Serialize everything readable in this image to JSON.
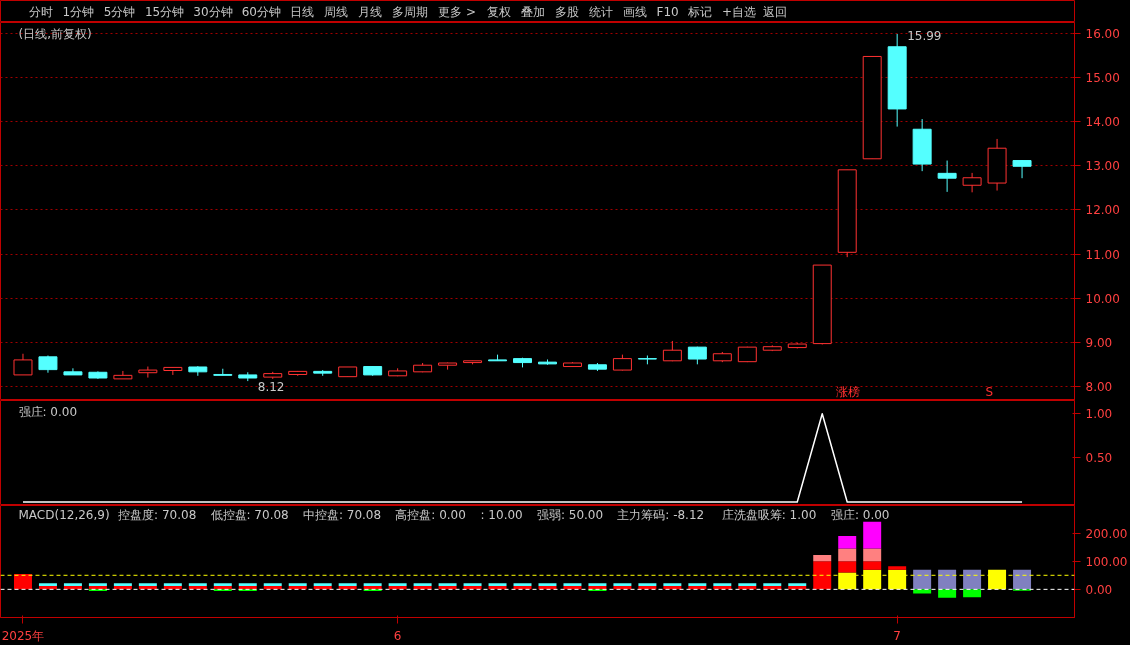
{
  "chart_data": [
    {
      "type": "other",
      "annotations": [
        "分时",
        "1分钟",
        "5分钟",
        "15分钟",
        "30分钟",
        "60分钟",
        "日线",
        "周线",
        "月线",
        "多周期",
        "更多 >",
        "复权",
        "叠加",
        "多股",
        "统计",
        "画线",
        "F10",
        "标记",
        "+自选",
        "返回"
      ]
    },
    {
      "type": "candlestick",
      "title": "(日线,前复权)",
      "categories": [
        null,
        null,
        null,
        null,
        null,
        null,
        null,
        null,
        null,
        null,
        null,
        null,
        null,
        null,
        null,
        null,
        null,
        null,
        null,
        null,
        null,
        null,
        null,
        null,
        null,
        null,
        null,
        null,
        null,
        null,
        null,
        null,
        null,
        null,
        null,
        null,
        null,
        null,
        null,
        null,
        null
      ],
      "ohlc": [
        [
          8.26,
          8.74,
          8.26,
          8.6
        ],
        [
          8.67,
          8.7,
          8.31,
          8.38
        ],
        [
          8.33,
          8.41,
          8.26,
          8.26
        ],
        [
          8.32,
          8.34,
          8.17,
          8.19
        ],
        [
          8.17,
          8.35,
          8.17,
          8.25
        ],
        [
          8.31,
          8.45,
          8.2,
          8.37
        ],
        [
          8.36,
          8.43,
          8.26,
          8.43
        ],
        [
          8.44,
          8.46,
          8.24,
          8.33
        ],
        [
          8.27,
          8.4,
          8.25,
          8.25
        ],
        [
          8.26,
          8.32,
          8.12,
          8.19
        ],
        [
          8.21,
          8.33,
          8.17,
          8.29
        ],
        [
          8.27,
          8.35,
          8.24,
          8.34
        ],
        [
          8.34,
          8.37,
          8.24,
          8.3
        ],
        [
          8.22,
          8.44,
          8.22,
          8.44
        ],
        [
          8.45,
          8.46,
          8.24,
          8.26
        ],
        [
          8.24,
          8.41,
          8.23,
          8.35
        ],
        [
          8.33,
          8.53,
          8.32,
          8.48
        ],
        [
          8.48,
          8.54,
          8.38,
          8.53
        ],
        [
          8.54,
          8.58,
          8.5,
          8.58
        ],
        [
          8.6,
          8.72,
          8.58,
          8.58
        ],
        [
          8.63,
          8.65,
          8.43,
          8.54
        ],
        [
          8.55,
          8.61,
          8.49,
          8.51
        ],
        [
          8.45,
          8.55,
          8.44,
          8.53
        ],
        [
          8.49,
          8.53,
          8.35,
          8.39
        ],
        [
          8.37,
          8.72,
          8.36,
          8.63
        ],
        [
          8.63,
          8.7,
          8.5,
          8.62
        ],
        [
          8.58,
          9.03,
          8.57,
          8.82
        ],
        [
          8.89,
          8.9,
          8.5,
          8.62
        ],
        [
          8.58,
          8.78,
          8.55,
          8.74
        ],
        [
          8.56,
          8.9,
          8.55,
          8.89
        ],
        [
          8.82,
          8.93,
          8.8,
          8.9
        ],
        [
          8.88,
          8.99,
          8.86,
          8.96
        ],
        [
          8.97,
          10.75,
          8.95,
          10.75
        ],
        [
          11.04,
          12.91,
          10.93,
          12.91
        ],
        [
          13.16,
          15.48,
          13.16,
          15.48
        ],
        [
          15.7,
          15.99,
          13.89,
          14.29
        ],
        [
          13.83,
          14.06,
          12.88,
          13.04
        ],
        [
          12.83,
          13.12,
          12.41,
          12.72
        ],
        [
          12.56,
          12.84,
          12.4,
          12.73
        ],
        [
          12.61,
          13.61,
          12.44,
          13.4
        ],
        [
          13.12,
          13.13,
          12.72,
          12.99
        ]
      ],
      "colors": [
        "#ff3232",
        "#54ffff",
        "#54ffff",
        "#54ffff",
        "#ff3232",
        "#ff3232",
        "#ff3232",
        "#54ffff",
        "#54ffff",
        "#54ffff",
        "#ff3232",
        "#ff3232",
        "#54ffff",
        "#ff3232",
        "#54ffff",
        "#ff3232",
        "#ff3232",
        "#ff3232",
        "#ff3232",
        "#54ffff",
        "#54ffff",
        "#54ffff",
        "#ff3232",
        "#54ffff",
        "#ff3232",
        "#54ffff",
        "#ff3232",
        "#54ffff",
        "#ff3232",
        "#ff3232",
        "#ff3232",
        "#ff3232",
        "#ff3232",
        "#ff3232",
        "#ff3232",
        "#54ffff",
        "#54ffff",
        "#54ffff",
        "#ff3232",
        "#ff3232",
        "#54ffff"
      ],
      "ylim": [
        7.68,
        16.25
      ],
      "yticks": [
        {
          "value": 8,
          "label": "8.00"
        },
        {
          "value": 9,
          "label": "9.00"
        },
        {
          "value": 10,
          "label": "10.00"
        },
        {
          "value": 11,
          "label": "11.00"
        },
        {
          "value": 12,
          "label": "12.00"
        },
        {
          "value": 13,
          "label": "13.00"
        },
        {
          "value": 14,
          "label": "14.00"
        },
        {
          "value": 15,
          "label": "15.00"
        },
        {
          "value": 16,
          "label": "16.00"
        }
      ],
      "grid": "y",
      "tick_labels": "y",
      "annotations": [
        "15.99",
        "8.12",
        "涨榜",
        "S"
      ]
    },
    {
      "type": "line",
      "title": "强庄: 0.00",
      "categories": [
        null,
        null,
        null,
        null,
        null,
        null,
        null,
        null,
        null,
        null,
        null,
        null,
        null,
        null,
        null,
        null,
        null,
        null,
        null,
        null,
        null,
        null,
        null,
        null,
        null,
        null,
        null,
        null,
        null,
        null,
        null,
        null,
        null,
        null,
        null,
        null,
        null,
        null,
        null,
        null,
        null
      ],
      "series": [
        {
          "color": "#ffffff",
          "values": [
            0,
            0,
            0,
            0,
            0,
            0,
            0,
            0,
            0,
            0,
            0,
            0,
            0,
            0,
            0,
            0,
            0,
            0,
            0,
            0,
            0,
            0,
            0,
            0,
            0,
            0,
            0,
            0,
            0,
            0,
            0,
            0,
            1,
            0,
            0,
            0,
            0,
            0,
            0,
            0,
            0
          ]
        }
      ],
      "ylim": [
        -0.04,
        1.15
      ],
      "yticks": [
        {
          "value": 0.5,
          "label": "0.50"
        },
        {
          "value": 1,
          "label": "1.00"
        }
      ],
      "tick_labels": "y"
    },
    {
      "type": "bar",
      "stacked": true,
      "categories": [
        "2025年",
        null,
        null,
        null,
        null,
        null,
        null,
        null,
        null,
        null,
        null,
        null,
        null,
        null,
        null,
        "6",
        null,
        null,
        null,
        null,
        null,
        null,
        null,
        null,
        null,
        null,
        null,
        null,
        null,
        null,
        null,
        null,
        null,
        null,
        null,
        "7",
        null,
        null,
        null,
        null,
        null
      ],
      "series": [
        {
          "color": "#ffff00",
          "values": [
            null,
            null,
            null,
            null,
            null,
            null,
            null,
            null,
            null,
            null,
            null,
            null,
            null,
            null,
            null,
            null,
            null,
            null,
            null,
            null,
            null,
            null,
            null,
            null,
            null,
            null,
            null,
            null,
            null,
            null,
            null,
            null,
            null,
            60,
            70,
            70,
            null,
            null,
            null,
            70,
            null
          ]
        },
        {
          "color": "#8080c0",
          "values": [
            null,
            null,
            null,
            null,
            null,
            null,
            null,
            null,
            null,
            null,
            null,
            null,
            null,
            null,
            null,
            null,
            null,
            null,
            null,
            null,
            null,
            null,
            null,
            null,
            null,
            null,
            null,
            null,
            null,
            null,
            null,
            null,
            null,
            null,
            null,
            null,
            70,
            70,
            70,
            null,
            70
          ]
        },
        {
          "color": "#ff0000",
          "values": [
            55,
            12,
            12,
            12,
            12,
            12,
            12,
            12,
            12,
            12,
            12,
            12,
            12,
            12,
            12,
            12,
            12,
            12,
            12,
            12,
            12,
            12,
            12,
            12,
            12,
            12,
            12,
            12,
            12,
            12,
            12,
            12,
            100,
            40,
            30,
            12,
            null,
            null,
            null,
            null,
            null
          ]
        },
        {
          "color": "#54ffff",
          "values": [
            null,
            10,
            10,
            10,
            10,
            10,
            10,
            10,
            10,
            10,
            10,
            10,
            10,
            10,
            10,
            10,
            10,
            10,
            10,
            10,
            10,
            10,
            10,
            10,
            10,
            10,
            10,
            10,
            10,
            10,
            10,
            10,
            null,
            null,
            null,
            null,
            null,
            null,
            null,
            null,
            null
          ]
        },
        {
          "color": "#ff8080",
          "values": [
            null,
            null,
            null,
            null,
            null,
            null,
            null,
            null,
            null,
            null,
            null,
            null,
            null,
            null,
            null,
            null,
            null,
            null,
            null,
            null,
            null,
            null,
            null,
            null,
            null,
            null,
            null,
            null,
            null,
            null,
            null,
            null,
            22,
            45,
            45,
            null,
            null,
            null,
            null,
            null,
            null
          ]
        },
        {
          "color": "#ff00ff",
          "values": [
            null,
            null,
            null,
            null,
            null,
            null,
            null,
            null,
            null,
            null,
            null,
            null,
            null,
            null,
            null,
            null,
            null,
            null,
            null,
            null,
            null,
            null,
            null,
            null,
            null,
            null,
            null,
            null,
            null,
            null,
            null,
            null,
            null,
            45,
            95,
            null,
            null,
            null,
            null,
            null,
            null
          ]
        },
        {
          "color": "#00ff00",
          "values": [
            null,
            null,
            null,
            -6,
            null,
            null,
            null,
            null,
            -6,
            -6,
            null,
            null,
            null,
            null,
            -6,
            null,
            null,
            null,
            null,
            null,
            null,
            null,
            null,
            -6,
            null,
            null,
            null,
            null,
            null,
            null,
            null,
            null,
            null,
            null,
            null,
            null,
            -15,
            -30,
            -28,
            null,
            -5
          ]
        }
      ],
      "ylim": [
        -100,
        298
      ],
      "yticks": [
        {
          "value": 0,
          "label": "0.00"
        },
        {
          "value": 100,
          "label": "100.00"
        },
        {
          "value": 200,
          "label": "200.00"
        }
      ],
      "ref_lines": [
        {
          "axis": "y",
          "value": 50,
          "color": "#ffff00",
          "line_style": "dashed"
        },
        {
          "axis": "y",
          "value": 0,
          "color": "#ffffff",
          "line_style": "dashed"
        }
      ],
      "annotations": [
        "MACD(12,26,9)",
        "控盘度: 70.08",
        "低控盘: 70.08",
        "中控盘: 70.08",
        "高控盘: 0.00",
        ": 10.00",
        "强弱: 50.00",
        "主力筹码: -8.12",
        "庄洗盘吸筹: 1.00",
        "强庄: 0.00"
      ]
    }
  ]
}
